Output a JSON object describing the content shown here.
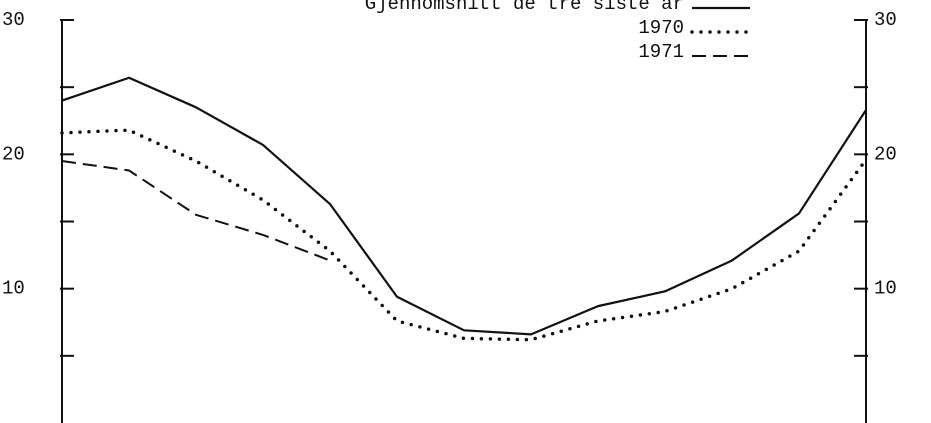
{
  "chart_data": {
    "type": "line",
    "x": [
      0,
      1,
      2,
      3,
      4,
      5,
      6,
      7,
      8,
      9,
      10,
      11,
      12
    ],
    "xlim": [
      0,
      12
    ],
    "ylim": [
      0,
      30
    ],
    "yticks": [
      10,
      20,
      30
    ],
    "yticks_minor": [
      5,
      15,
      25
    ],
    "series": [
      {
        "name": "Gjennomsnitt de tre siste år",
        "color": "#111111",
        "style": "solid",
        "values": [
          24.0,
          25.7,
          23.5,
          20.7,
          16.3,
          9.4,
          6.9,
          6.6,
          8.7,
          9.8,
          12.1,
          15.6,
          23.3
        ]
      },
      {
        "name": "1970",
        "color": "#111111",
        "style": "dotted",
        "values": [
          21.6,
          21.8,
          19.5,
          16.6,
          12.8,
          7.6,
          6.3,
          6.2,
          7.6,
          8.3,
          10.0,
          12.8,
          19.6
        ]
      },
      {
        "name": "1971",
        "color": "#111111",
        "style": "dashed",
        "values": [
          19.5,
          18.8,
          15.5,
          14.0,
          12.1,
          null,
          null,
          null,
          null,
          null,
          null,
          null,
          null
        ]
      }
    ]
  }
}
